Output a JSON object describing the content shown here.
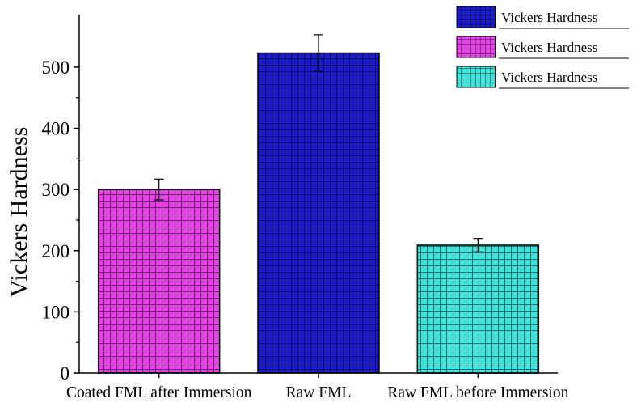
{
  "chart_data": {
    "type": "bar",
    "title": "",
    "xlabel": "",
    "ylabel": "Vickers Hardness",
    "ylim": [
      0,
      570
    ],
    "yticks": [
      0,
      100,
      200,
      300,
      400,
      500
    ],
    "grid": false,
    "legend_position": "top-right",
    "categories": [
      "Coated FML after Immersion",
      "Raw FML",
      "Raw FML before Immersion"
    ],
    "series": [
      {
        "name": "Vickers Hardness",
        "color": "#1c1ccc",
        "values": [
          null,
          523,
          null
        ],
        "errors": [
          null,
          30,
          null
        ]
      },
      {
        "name": "Vickers Hardness",
        "color": "#e642e6",
        "values": [
          300,
          null,
          null
        ],
        "errors": [
          17,
          null,
          null
        ]
      },
      {
        "name": "Vickers Hardness",
        "color": "#40e4dc",
        "values": [
          null,
          null,
          209
        ],
        "errors": [
          null,
          null,
          11
        ]
      }
    ]
  }
}
